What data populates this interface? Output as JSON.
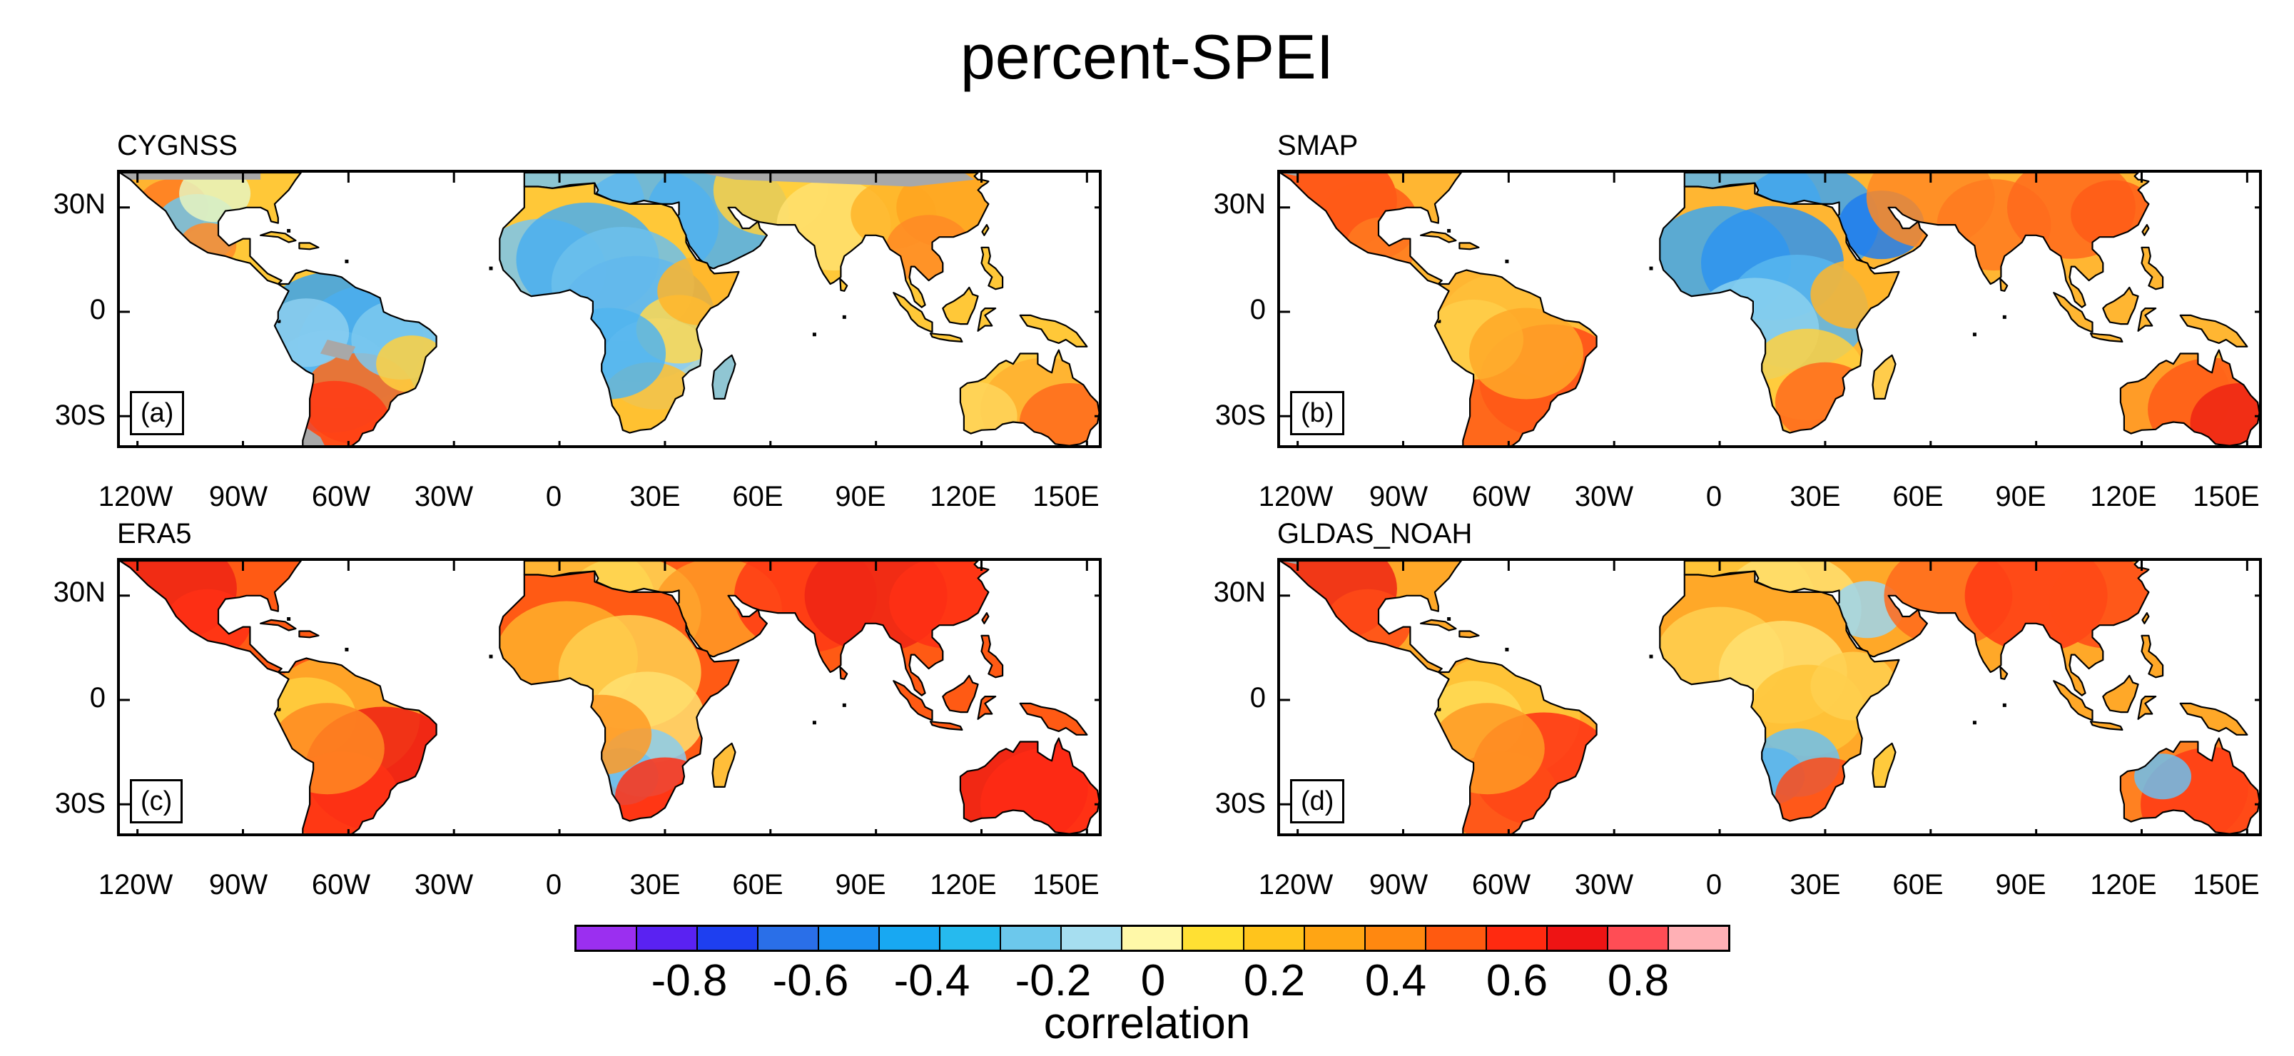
{
  "title": "percent-SPEI",
  "panels": [
    {
      "title": "CYGNSS",
      "label": "(a)",
      "scheme": "cygnss"
    },
    {
      "title": "SMAP",
      "label": "(b)",
      "scheme": "smap"
    },
    {
      "title": "ERA5",
      "label": "(c)",
      "scheme": "era5"
    },
    {
      "title": "GLDAS_NOAH",
      "label": "(d)",
      "scheme": "gldas"
    }
  ],
  "lat_ticks": [
    "30N",
    "0",
    "30S"
  ],
  "lon_ticks": [
    "120W",
    "90W",
    "60W",
    "30W",
    "0",
    "30E",
    "60E",
    "90E",
    "120E",
    "150E"
  ],
  "colorbar": {
    "title": "correlation",
    "labels": [
      "-0.8",
      "-0.6",
      "-0.4",
      "-0.2",
      "0",
      "0.2",
      "0.4",
      "0.6",
      "0.8"
    ],
    "colors": [
      "#9b2ff0",
      "#5a22f2",
      "#1e3ff0",
      "#2a6fe8",
      "#1a8ef0",
      "#18a8f2",
      "#26baee",
      "#6cc8ec",
      "#a6def0",
      "#fff8a8",
      "#ffe033",
      "#ffc41c",
      "#ffa514",
      "#ff8810",
      "#ff5a10",
      "#ff2a10",
      "#ee1414",
      "#ff4d55",
      "#ffb0b5"
    ]
  }
}
